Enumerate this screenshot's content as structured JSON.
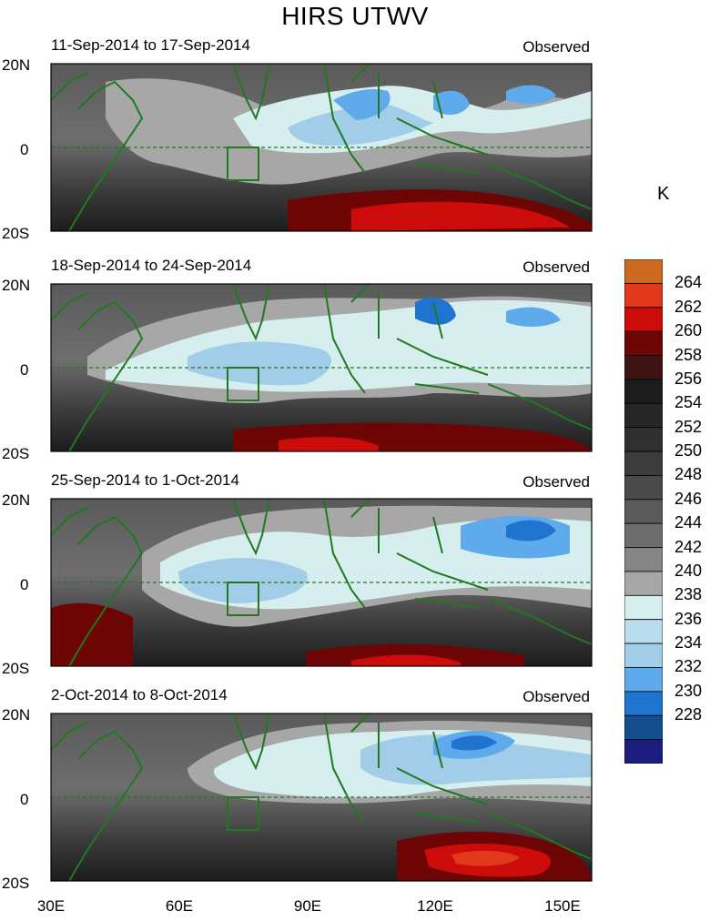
{
  "title": "HIRS UTWV",
  "unit": "K",
  "panels": [
    {
      "date_range": "11-Sep-2014 to 17-Sep-2014",
      "tag": "Observed"
    },
    {
      "date_range": "18-Sep-2014 to 24-Sep-2014",
      "tag": "Observed"
    },
    {
      "date_range": "25-Sep-2014 to 1-Oct-2014",
      "tag": "Observed"
    },
    {
      "date_range": "2-Oct-2014 to 8-Oct-2014",
      "tag": "Observed"
    }
  ],
  "lat_labels": {
    "north": "20N",
    "equator": "0",
    "south": "20S"
  },
  "lon_labels": [
    "30E",
    "60E",
    "90E",
    "120E",
    "150E"
  ],
  "colorbar": {
    "labels": [
      "264",
      "262",
      "260",
      "258",
      "256",
      "254",
      "252",
      "250",
      "248",
      "246",
      "244",
      "242",
      "240",
      "238",
      "236",
      "234",
      "232",
      "230",
      "228"
    ],
    "colors": [
      "#cc6a20",
      "#e2391a",
      "#cc0b0b",
      "#6e0505",
      "#401414",
      "#1c1c1c",
      "#262626",
      "#303030",
      "#3c3c3c",
      "#4a4a4a",
      "#5a5a5a",
      "#6e6e6e",
      "#858585",
      "#a7a7a7",
      "#d6eeee",
      "#b9dded",
      "#a2cde9",
      "#5faaea",
      "#1f74cf",
      "#134e8e",
      "#1c1d7e"
    ]
  },
  "colors": {
    "coast": "#1f7a1f",
    "equator_line": "#1f7a1f",
    "box": "#1f7a1f"
  }
}
